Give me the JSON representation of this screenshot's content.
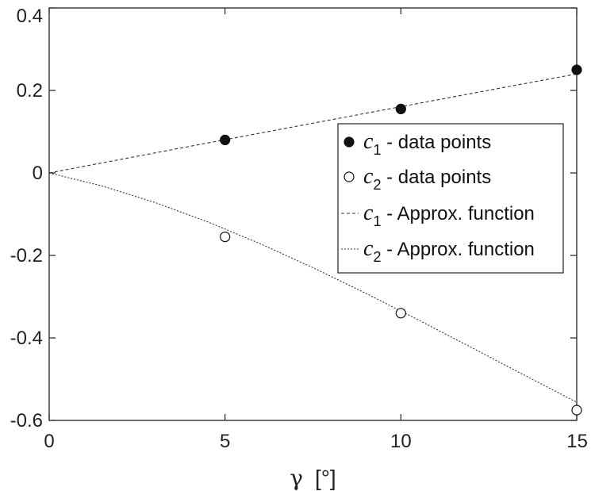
{
  "chart_data": {
    "type": "scatter",
    "title": "",
    "xlabel_symbol": "γ",
    "xlabel_unit": "[°]",
    "ylabel": "",
    "xlim": [
      0,
      15
    ],
    "ylim": [
      -0.6,
      0.4
    ],
    "xticks": [
      0,
      5,
      10,
      15
    ],
    "xtick_labels": [
      "0",
      "5",
      "10",
      "15"
    ],
    "yticks": [
      -0.6,
      -0.4,
      -0.2,
      0,
      0.2,
      0.4
    ],
    "ytick_labels": [
      "-0.6",
      "-0.4",
      "-0.2",
      "0",
      "0.2",
      "0.4"
    ],
    "grid": false,
    "legend_position": "center-right",
    "series": [
      {
        "name": "c1 - data points",
        "symbol": "c",
        "subscript": "1",
        "label_rest": " - data points",
        "kind": "points",
        "marker": "filled-circle",
        "x": [
          5,
          10,
          15
        ],
        "y": [
          0.08,
          0.155,
          0.25
        ]
      },
      {
        "name": "c2 - data points",
        "symbol": "c",
        "subscript": "2",
        "label_rest": " - data points",
        "kind": "points",
        "marker": "open-circle",
        "x": [
          5,
          10,
          15
        ],
        "y": [
          -0.155,
          -0.34,
          -0.575
        ]
      },
      {
        "name": "c1 - Approx. function",
        "symbol": "c",
        "subscript": "1",
        "label_rest": " - Approx. function",
        "kind": "line",
        "dash": "dashed",
        "x": [
          0,
          1.5,
          3,
          4.5,
          6,
          7.5,
          9,
          10.5,
          12,
          13.5,
          15
        ],
        "y": [
          0,
          0.0242,
          0.0484,
          0.0725,
          0.0966,
          0.1206,
          0.1446,
          0.1686,
          0.1925,
          0.2163,
          0.24
        ]
      },
      {
        "name": "c2 - Approx. function",
        "symbol": "c",
        "subscript": "2",
        "label_rest": " - Approx. function",
        "kind": "line",
        "dash": "dotted",
        "x": [
          0,
          1.5,
          3,
          4.5,
          6,
          7.5,
          9,
          10.5,
          12,
          13.5,
          15
        ],
        "y": [
          0,
          -0.0316,
          -0.0714,
          -0.1184,
          -0.1716,
          -0.2297,
          -0.2917,
          -0.3565,
          -0.4229,
          -0.4898,
          -0.556
        ]
      }
    ]
  }
}
